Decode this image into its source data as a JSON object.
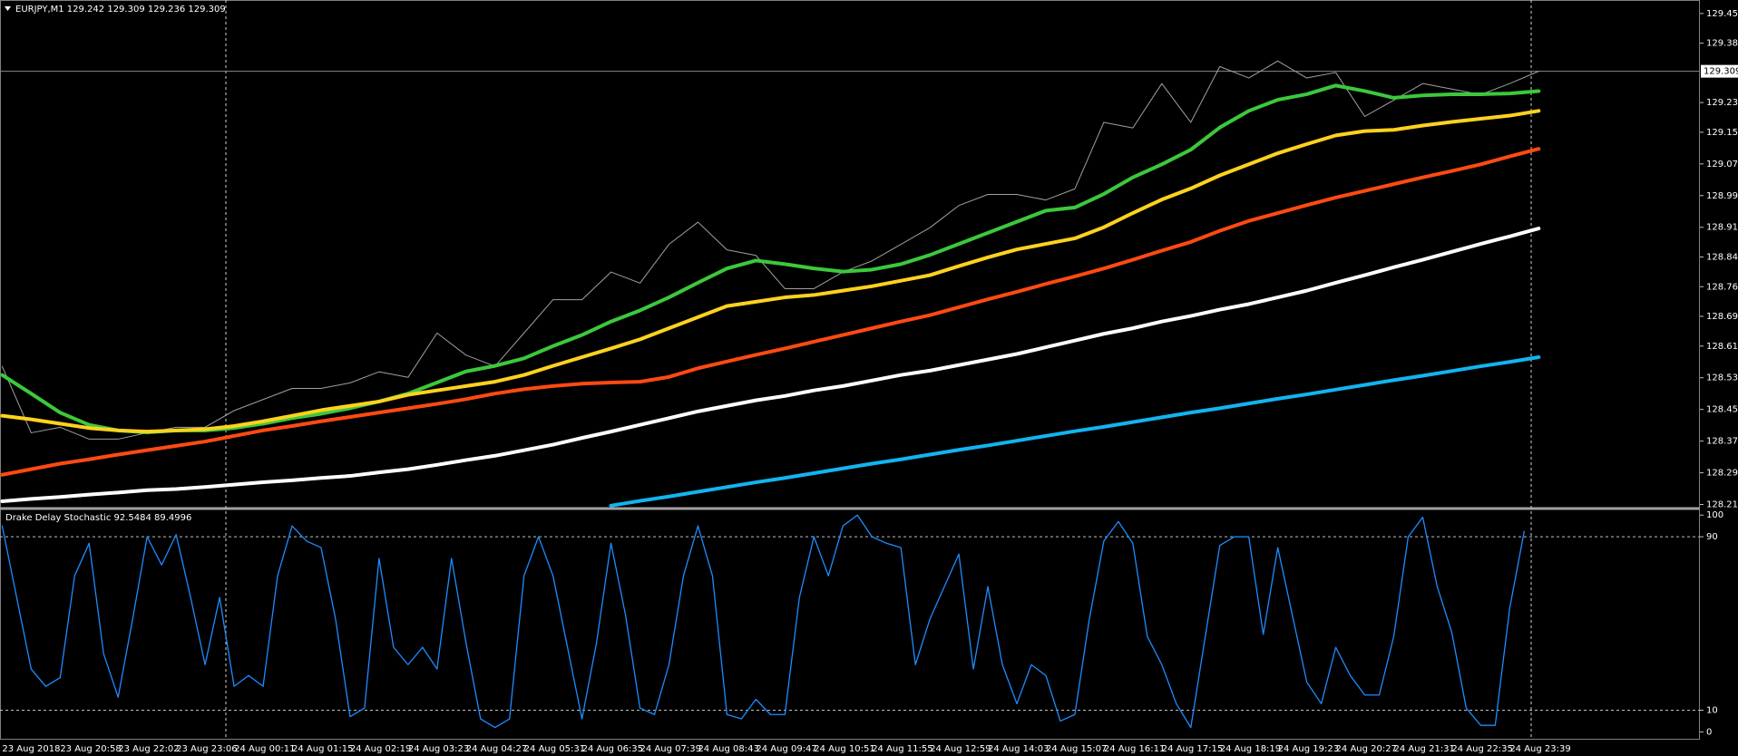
{
  "chart_data": [
    {
      "type": "line",
      "title": "EURJPY,M1  129.242 129.309 129.236 129.309",
      "categories": [
        null,
        null,
        null,
        null,
        null,
        null,
        null,
        null,
        null,
        null,
        null,
        null,
        null,
        null,
        null,
        null,
        null,
        null,
        null,
        null,
        null,
        null,
        null,
        null,
        null,
        null,
        null,
        null,
        null,
        null,
        null,
        null,
        null,
        null,
        null,
        null,
        null,
        null,
        null,
        null,
        null,
        null,
        null,
        null,
        null,
        null,
        null,
        null,
        null,
        null,
        null,
        null,
        null,
        null
      ],
      "ylim": [
        128.207,
        129.489
      ],
      "yticks": [
        129.455,
        {
          "value": 129.38,
          "label": "129.380"
        },
        {
          "value": 129.23,
          "label": "129.230"
        },
        129.155,
        129.075,
        128.995,
        128.915,
        {
          "value": 128.84,
          "label": "128.840"
        },
        128.765,
        {
          "value": 128.69,
          "label": "128.690"
        },
        128.615,
        128.535,
        128.455,
        128.375,
        128.295,
        128.215
      ],
      "current_price": 129.309,
      "series": [
        {
          "color": "#a0a0a0",
          "width": 1,
          "values": [
            128.564,
            128.396,
            128.41,
            128.38,
            128.38,
            128.396,
            128.41,
            128.41,
            128.452,
            128.48,
            128.508,
            128.508,
            128.522,
            128.55,
            128.536,
            128.648,
            128.592,
            128.564,
            128.648,
            128.732,
            128.732,
            128.802,
            128.774,
            128.872,
            128.928,
            128.858,
            128.844,
            128.76,
            128.76,
            128.802,
            128.83,
            128.872,
            128.914,
            128.97,
            128.998,
            128.998,
            128.984,
            129.012,
            129.18,
            129.166,
            129.278,
            129.18,
            129.321,
            129.292,
            129.335,
            129.292,
            129.306,
            129.195,
            129.236,
            129.278,
            129.264,
            129.25,
            129.278,
            129.309
          ]
        },
        {
          "color": "#3cc83c",
          "width": 4,
          "values": [
            128.542,
            128.495,
            128.447,
            128.416,
            128.402,
            128.397,
            128.402,
            128.402,
            128.408,
            128.419,
            128.433,
            128.444,
            128.458,
            128.475,
            128.495,
            128.523,
            128.551,
            128.565,
            128.584,
            128.615,
            128.643,
            128.677,
            128.705,
            128.738,
            128.775,
            128.811,
            128.831,
            128.822,
            128.811,
            128.803,
            128.808,
            128.822,
            128.845,
            128.873,
            128.901,
            128.929,
            128.957,
            128.965,
            128.999,
            129.041,
            129.074,
            129.111,
            129.167,
            129.209,
            129.237,
            129.251,
            129.273,
            129.259,
            129.242,
            129.248,
            129.251,
            129.251,
            129.253,
            129.259
          ]
        },
        {
          "color": "#ffd21e",
          "width": 4,
          "values": [
            128.439,
            128.43,
            128.419,
            128.408,
            128.402,
            128.399,
            128.402,
            128.405,
            128.413,
            128.425,
            128.439,
            128.453,
            128.464,
            128.475,
            128.492,
            128.503,
            128.514,
            128.525,
            128.542,
            128.565,
            128.587,
            128.609,
            128.632,
            128.66,
            128.688,
            128.716,
            128.727,
            128.738,
            128.744,
            128.755,
            128.766,
            128.78,
            128.794,
            128.817,
            128.839,
            128.859,
            128.873,
            128.887,
            128.915,
            128.951,
            128.985,
            129.013,
            129.046,
            129.074,
            129.102,
            129.125,
            129.147,
            129.158,
            129.161,
            129.172,
            129.181,
            129.189,
            129.197,
            129.209
          ]
        },
        {
          "color": "#ff4a12",
          "width": 4,
          "values": [
            128.29,
            128.304,
            128.318,
            128.329,
            128.341,
            128.352,
            128.363,
            128.374,
            128.388,
            128.402,
            128.413,
            128.425,
            128.436,
            128.447,
            128.458,
            128.469,
            128.481,
            128.495,
            128.506,
            128.514,
            128.52,
            128.523,
            128.525,
            128.537,
            128.559,
            128.576,
            128.593,
            128.609,
            128.626,
            128.643,
            128.66,
            128.677,
            128.693,
            128.713,
            128.733,
            128.752,
            128.772,
            128.791,
            128.811,
            128.833,
            128.856,
            128.878,
            128.906,
            128.931,
            128.951,
            128.971,
            128.99,
            129.007,
            129.024,
            129.041,
            129.057,
            129.074,
            129.094,
            129.113
          ]
        },
        {
          "color": "#ffffff",
          "width": 4,
          "values": [
            128.223,
            128.229,
            128.234,
            128.24,
            128.245,
            128.251,
            128.254,
            128.259,
            128.265,
            128.271,
            128.276,
            128.282,
            128.287,
            128.296,
            128.304,
            128.315,
            128.327,
            128.338,
            128.352,
            128.366,
            128.383,
            128.399,
            128.416,
            128.433,
            128.45,
            128.464,
            128.478,
            128.489,
            128.503,
            128.514,
            128.528,
            128.542,
            128.553,
            128.567,
            128.581,
            128.595,
            128.612,
            128.629,
            128.646,
            128.66,
            128.677,
            128.691,
            128.707,
            128.721,
            128.738,
            128.755,
            128.775,
            128.794,
            128.814,
            128.833,
            128.853,
            128.873,
            128.892,
            128.912
          ]
        },
        {
          "color": "#12b4f0",
          "width": 4,
          "values": [
            null,
            null,
            null,
            null,
            null,
            null,
            null,
            null,
            null,
            null,
            null,
            null,
            null,
            null,
            null,
            null,
            null,
            null,
            null,
            null,
            null,
            128.212,
            128.224,
            128.235,
            128.247,
            128.259,
            128.271,
            128.282,
            128.294,
            128.306,
            128.318,
            128.329,
            128.341,
            128.353,
            128.364,
            128.376,
            128.388,
            128.4,
            128.411,
            128.423,
            128.435,
            128.447,
            128.458,
            128.47,
            128.482,
            128.493,
            128.505,
            128.517,
            128.529,
            128.54,
            128.552,
            128.564,
            128.575,
            128.587
          ]
        }
      ]
    },
    {
      "type": "line",
      "title": "Drake Delay Stochastic 92.5484 89.4996",
      "categories": [
        "23 Aug 2018",
        null,
        null,
        null,
        "23 Aug 20:58",
        null,
        null,
        null,
        "23 Aug 22:02",
        null,
        null,
        null,
        "23 Aug 23:06",
        null,
        null,
        null,
        "24 Aug 00:11",
        null,
        null,
        null,
        "24 Aug 01:15",
        null,
        null,
        null,
        "24 Aug 02:19",
        null,
        null,
        null,
        "24 Aug 03:23",
        null,
        null,
        null,
        "24 Aug 04:27",
        null,
        null,
        null,
        "24 Aug 05:31",
        null,
        null,
        null,
        "24 Aug 06:35",
        null,
        null,
        null,
        "24 Aug 07:39",
        null,
        null,
        null,
        "24 Aug 08:43",
        null,
        null,
        null,
        "24 Aug 09:47",
        null,
        null,
        null,
        "24 Aug 10:51",
        null,
        null,
        null,
        "24 Aug 11:55",
        null,
        null,
        null,
        "24 Aug 12:59",
        null,
        null,
        null,
        "24 Aug 14:03",
        null,
        null,
        null,
        "24 Aug 15:07",
        null,
        null,
        null,
        "24 Aug 16:11",
        null,
        null,
        null,
        "24 Aug 17:15",
        null,
        null,
        null,
        "24 Aug 18:19",
        null,
        null,
        null,
        "24 Aug 19:23",
        null,
        null,
        null,
        "24 Aug 20:27",
        null,
        null,
        null,
        "24 Aug 21:31",
        null,
        null,
        null,
        "24 Aug 22:35",
        null,
        null,
        null,
        "24 Aug 23:39",
        null,
        null,
        null
      ],
      "ylim": [
        -3.6,
        102.6
      ],
      "yticks": [
        100,
        90,
        10,
        0
      ],
      "levels": [
        90,
        10
      ],
      "series": [
        {
          "color": "#1e8cff",
          "width": 1.3,
          "values": [
            95,
            62,
            29,
            21,
            25,
            72,
            87,
            36,
            16,
            52,
            90,
            77,
            91,
            62,
            31,
            62,
            21,
            26,
            21,
            72,
            95,
            88,
            85,
            52,
            7,
            11,
            80,
            39,
            31,
            39,
            29,
            80,
            41,
            6,
            2,
            6,
            72,
            90,
            72,
            39,
            6,
            41,
            87,
            54,
            11,
            8,
            31,
            72,
            95,
            72,
            8,
            6,
            15,
            8,
            8,
            62,
            90,
            72,
            95,
            100,
            90,
            87,
            85,
            31,
            52,
            67,
            82,
            29,
            67,
            31,
            13,
            31,
            26,
            5,
            8,
            52,
            88,
            97,
            87,
            44,
            31,
            13,
            2,
            44,
            86,
            90,
            90,
            45,
            85,
            54,
            23,
            13,
            39,
            26,
            17,
            17,
            44,
            90,
            99,
            67,
            46,
            11,
            3,
            3,
            57,
            92.5,
            null,
            null
          ]
        }
      ]
    }
  ]
}
